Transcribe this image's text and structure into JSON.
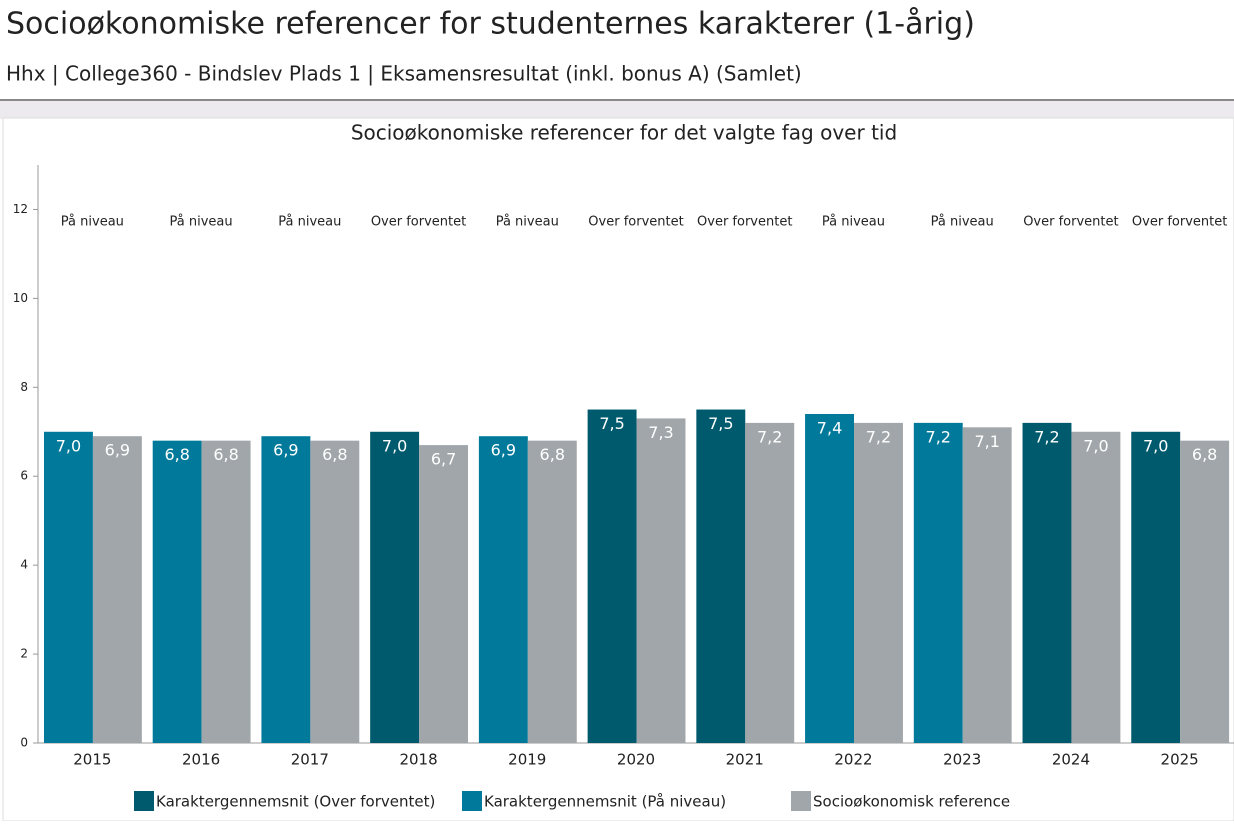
{
  "header": {
    "title": "Socioøkonomiske referencer for studenternes karakterer (1-årig)",
    "subtitle": "Hhx | College360 - Bindslev Plads 1 | Eksamensresultat (inkl. bonus A) (Samlet)"
  },
  "chart_data": {
    "type": "bar",
    "title": "Socioøkonomiske referencer for det valgte fag over tid",
    "categories": [
      "2015",
      "2016",
      "2017",
      "2018",
      "2019",
      "2020",
      "2021",
      "2022",
      "2023",
      "2024",
      "2025"
    ],
    "annotations": [
      "På niveau",
      "På niveau",
      "På niveau",
      "Over forventet",
      "På niveau",
      "Over forventet",
      "Over forventet",
      "På niveau",
      "På niveau",
      "Over forventet",
      "Over forventet"
    ],
    "series": [
      {
        "name": "Karaktergennemsnit (Over forventet)",
        "color": "#005a6e",
        "values": [
          null,
          null,
          null,
          7.0,
          null,
          7.5,
          7.5,
          null,
          null,
          7.2,
          7.0
        ],
        "value_labels": [
          null,
          null,
          null,
          "7,0",
          null,
          "7,5",
          "7,5",
          null,
          null,
          "7,2",
          "7,0"
        ]
      },
      {
        "name": "Karaktergennemsnit (På niveau)",
        "color": "#00799a",
        "values": [
          7.0,
          6.8,
          6.9,
          null,
          6.9,
          null,
          null,
          7.4,
          7.2,
          null,
          null
        ],
        "value_labels": [
          "7,0",
          "6,8",
          "6,9",
          null,
          "6,9",
          null,
          null,
          "7,4",
          "7,2",
          null,
          null
        ]
      },
      {
        "name": "Socioøkonomisk reference",
        "color": "#a0a6a9",
        "values": [
          6.9,
          6.8,
          6.8,
          6.7,
          6.8,
          7.3,
          7.2,
          7.2,
          7.1,
          7.0,
          6.8
        ],
        "value_labels": [
          "6,9",
          "6,8",
          "6,8",
          "6,7",
          "6,8",
          "7,3",
          "7,2",
          "7,2",
          "7,1",
          "7,0",
          "6,8"
        ]
      }
    ],
    "ylim": [
      0,
      13
    ],
    "yticks": [
      0,
      2,
      4,
      6,
      8,
      10,
      12
    ],
    "grid": false
  }
}
